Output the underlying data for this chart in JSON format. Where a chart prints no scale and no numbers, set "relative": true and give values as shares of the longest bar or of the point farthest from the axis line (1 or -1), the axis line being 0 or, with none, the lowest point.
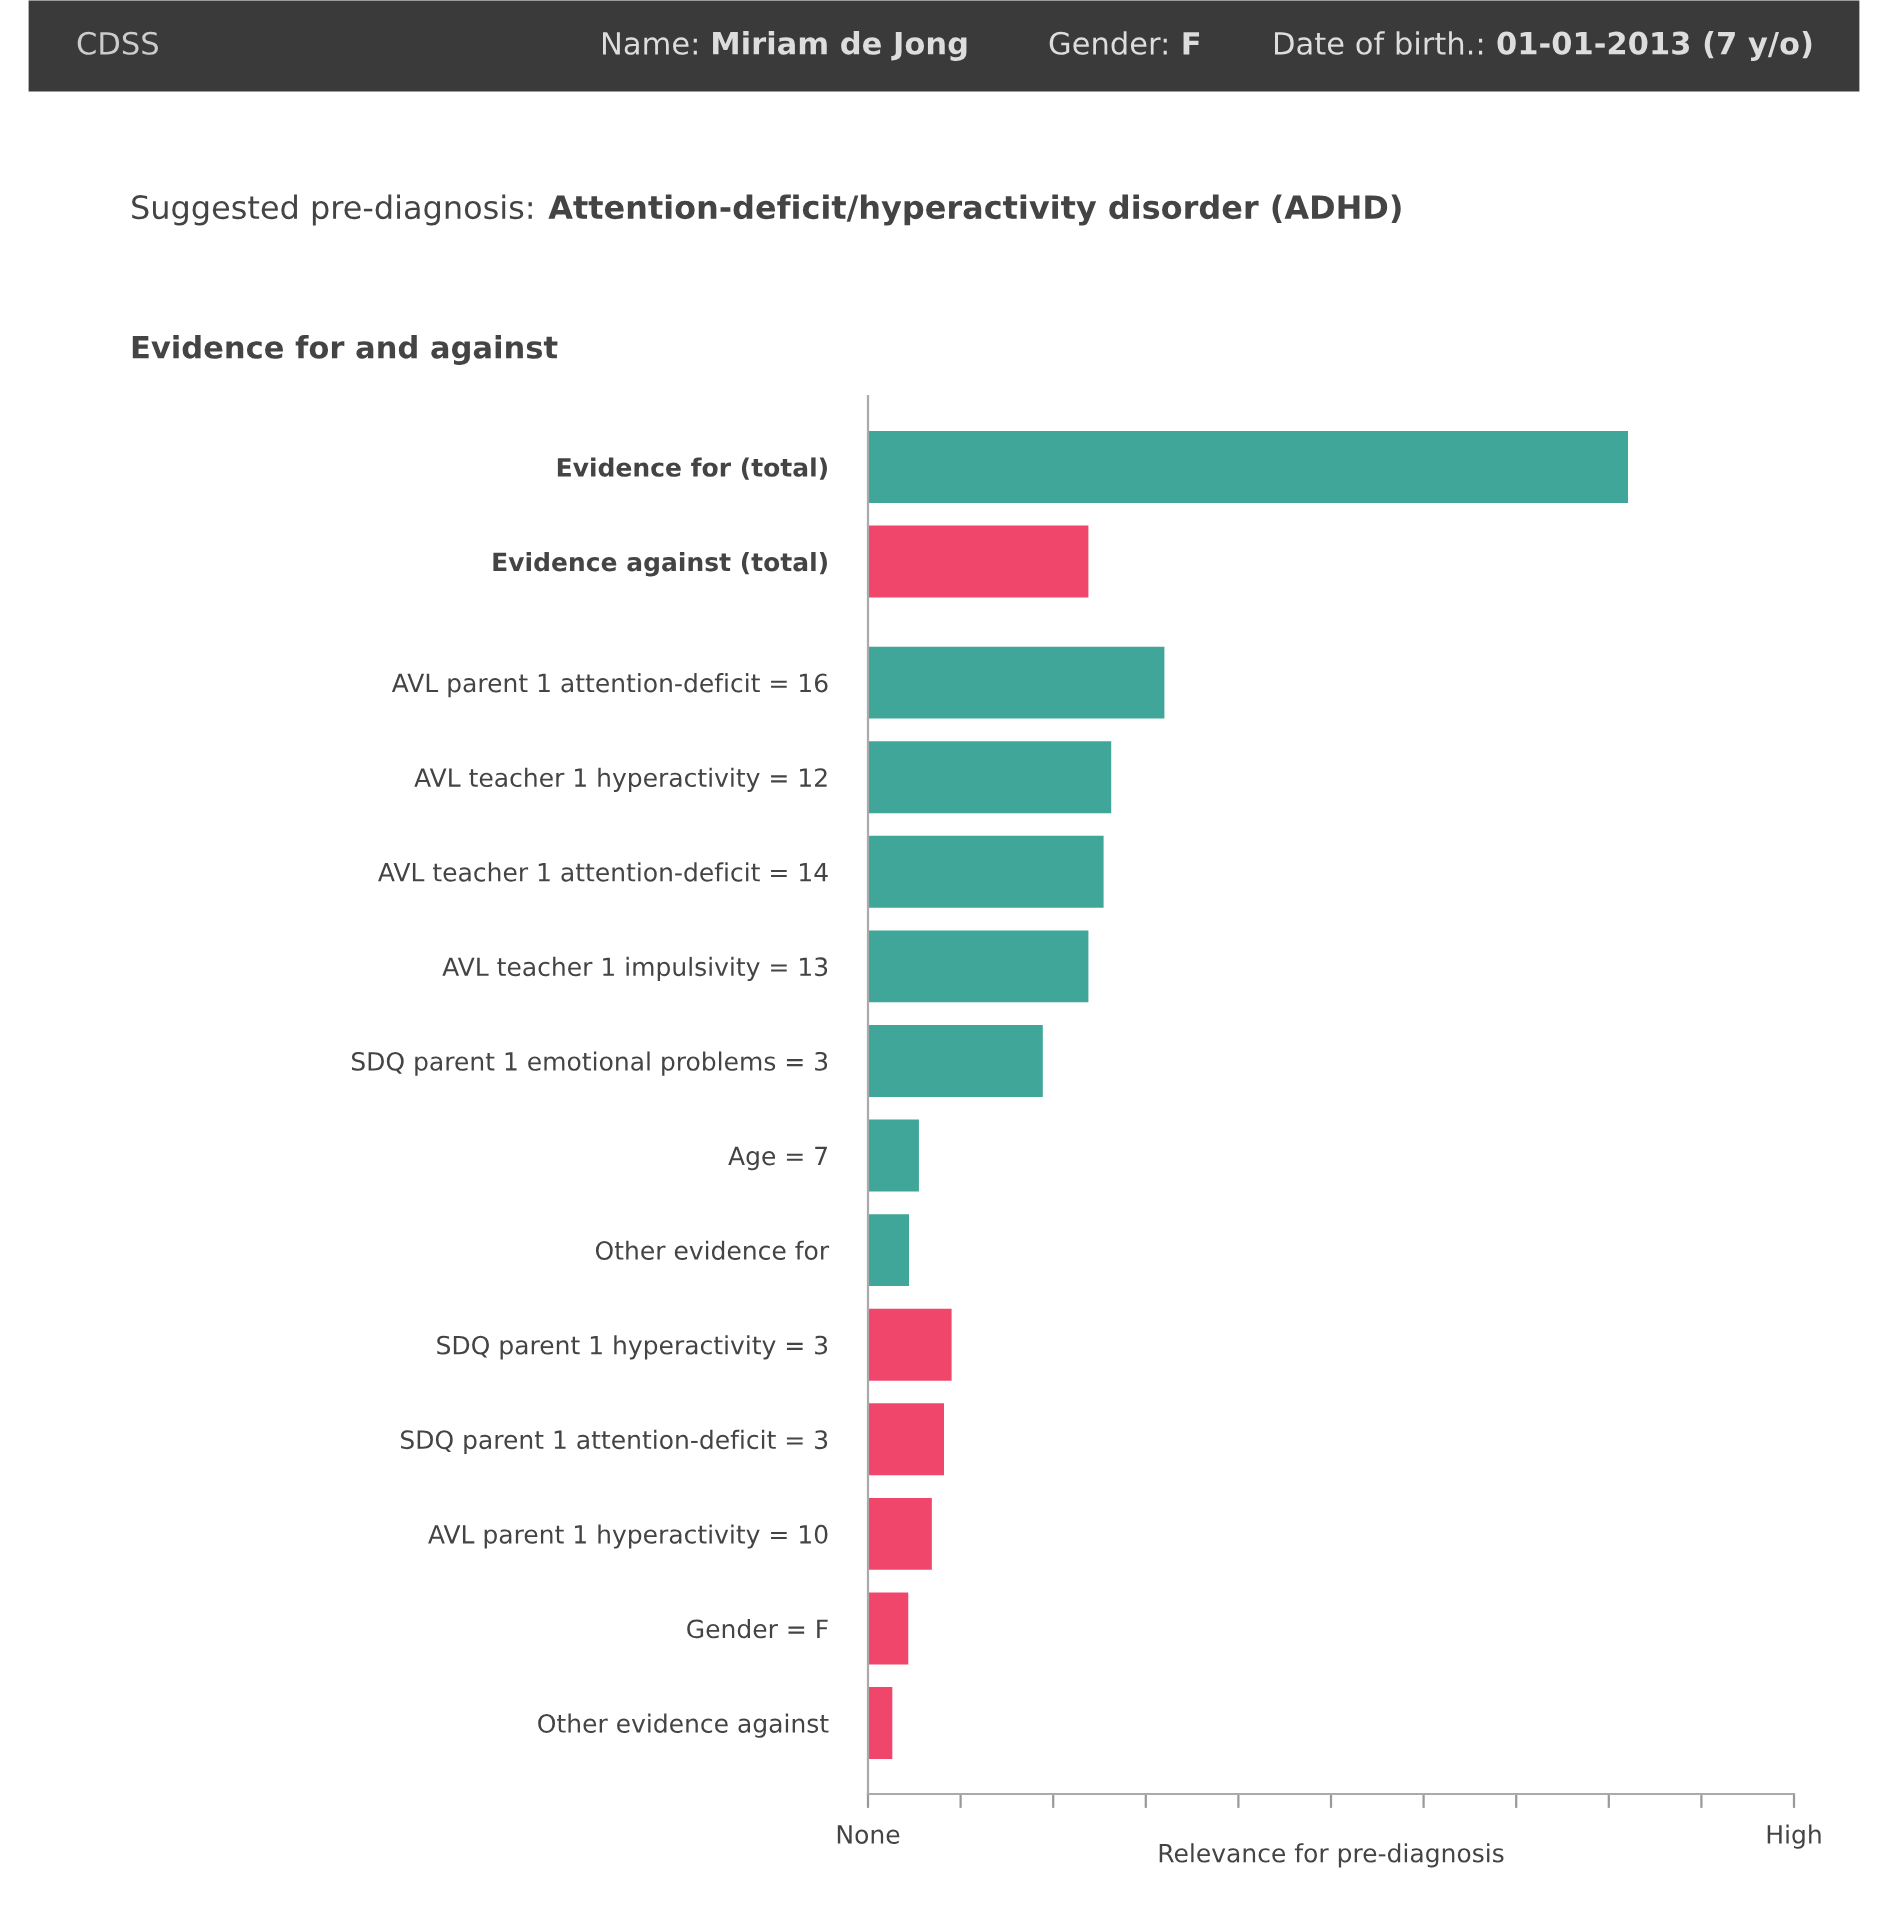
{
  "chart_data": {
    "type": "bar",
    "orientation": "horizontal",
    "title": "Suggested pre-diagnosis: Attention-deficit/hyperactivity disorder (ADHD)",
    "subtitle": "Evidence for and against",
    "xlabel": "Relevance for pre-diagnosis",
    "annotations": [
      "CDSS",
      "Name: Miriam de Jong",
      "Gender: F",
      "Date of birth.: 01-01-2013 (7 y/o)",
      "None",
      "High"
    ],
    "relative": true,
    "categories": [
      "Evidence for (total)",
      "Evidence against (total)",
      "AVL parent 1 attention-deficit = 16",
      "AVL teacher 1 hyperactivity = 12",
      "AVL teacher 1 attention-deficit = 14",
      "AVL teacher 1 impulsivity = 13",
      "SDQ parent 1 emotional problems = 3",
      "Age = 7",
      "Other evidence for",
      "SDQ parent 1 hyperactivity = 3",
      "SDQ parent 1 attention-deficit = 3",
      "AVL parent 1 hyperactivity = 10",
      "Gender = F",
      "Other evidence against"
    ],
    "values": [
      1,
      0.29,
      0.39,
      0.32,
      0.31,
      0.29,
      0.23,
      0.067,
      0.054,
      0.11,
      0.1,
      0.084,
      0.053,
      0.032
    ],
    "colors": [
      "#3fa699",
      "#f0466c",
      "#3fa699",
      "#3fa699",
      "#3fa699",
      "#3fa699",
      "#3fa699",
      "#3fa699",
      "#3fa699",
      "#f0466c",
      "#f0466c",
      "#f0466c",
      "#f0466c",
      "#f0466c"
    ],
    "grid": false,
    "legend": false
  }
}
